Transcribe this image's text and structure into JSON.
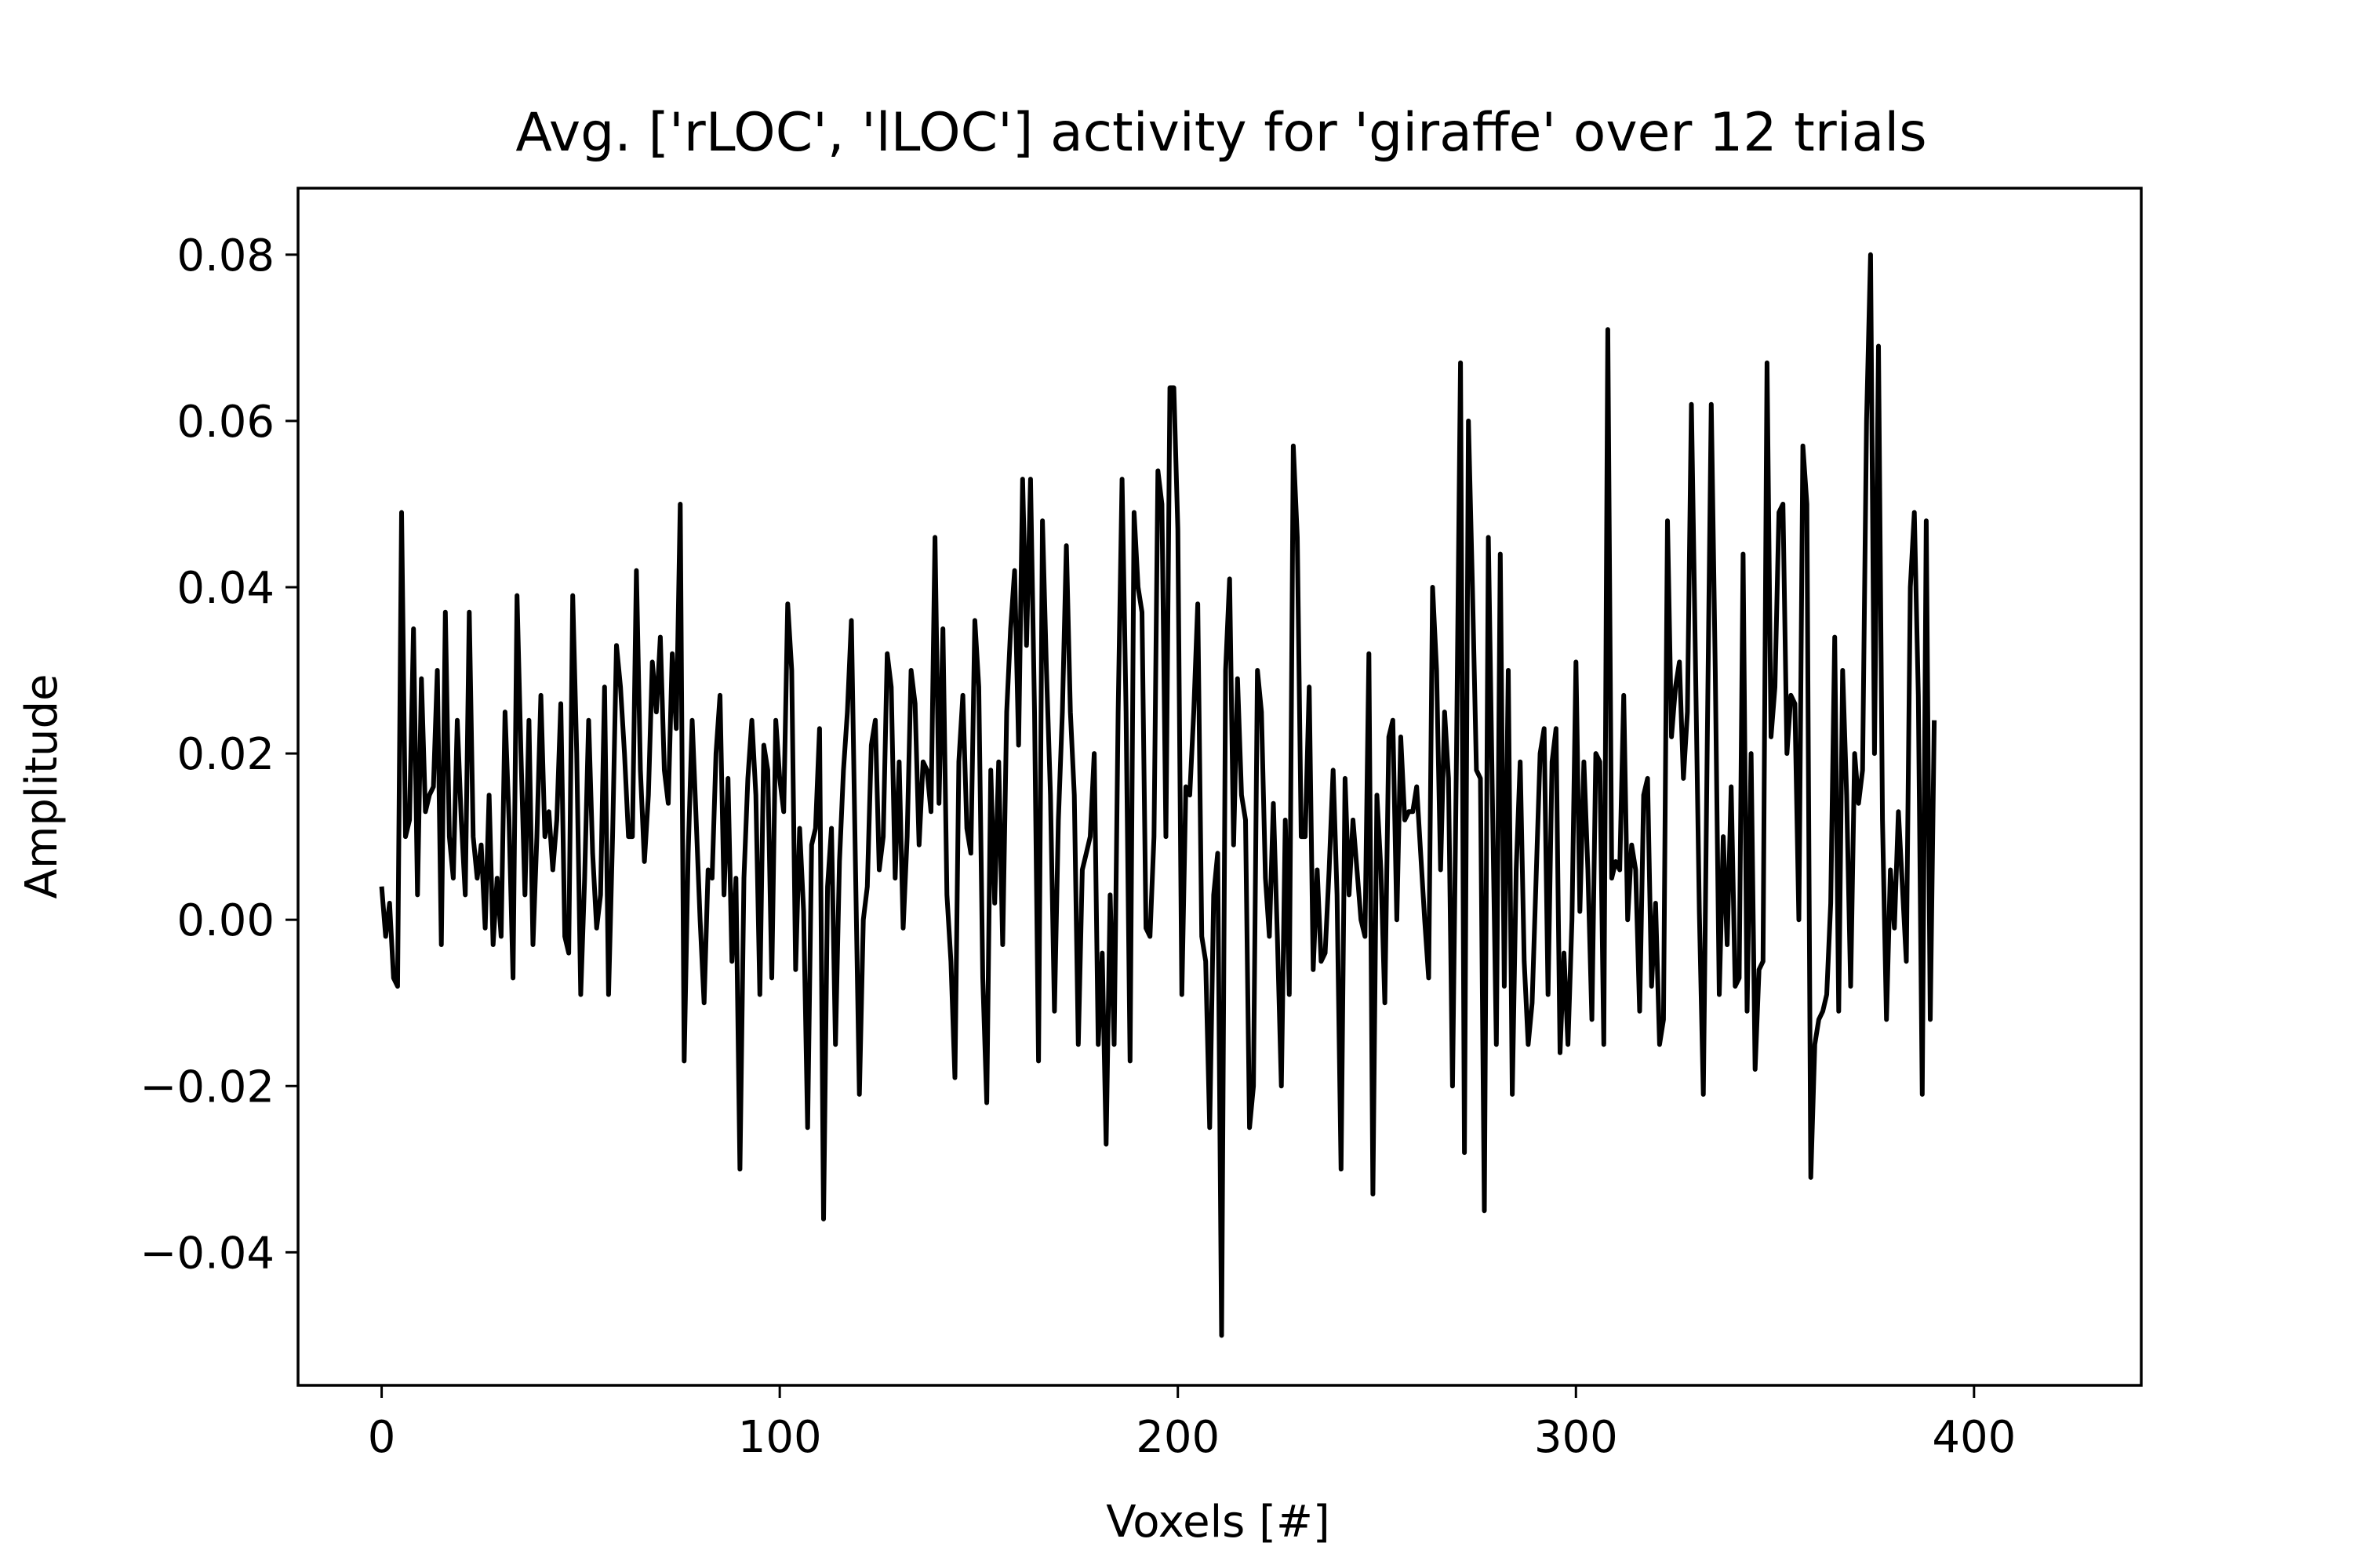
{
  "chart_data": {
    "type": "line",
    "title": "Avg. ['rLOC', 'lLOC'] activity for 'giraffe' over 12 trials",
    "xlabel": "Voxels [#]",
    "ylabel": "Amplitude",
    "xlim": [
      -21,
      442
    ],
    "ylim": [
      -0.056,
      0.088
    ],
    "x_ticks": [
      0,
      100,
      200,
      300,
      400
    ],
    "x_tick_labels": [
      "0",
      "100",
      "200",
      "300",
      "400"
    ],
    "y_ticks": [
      0.08,
      0.06,
      0.04,
      0.02,
      0.0,
      -0.02,
      -0.04
    ],
    "y_tick_labels": [
      "0.08",
      "0.06",
      "0.04",
      "0.02",
      "0.00",
      "−0.02",
      "−0.04"
    ],
    "grid": false,
    "line_color": "#000000",
    "series": [
      {
        "x_start": 0,
        "x_step": 1,
        "values": [
          0.004,
          -0.002,
          0.002,
          -0.007,
          -0.008,
          0.049,
          0.01,
          0.012,
          0.035,
          0.003,
          0.029,
          0.013,
          0.015,
          0.016,
          0.03,
          -0.003,
          0.037,
          0.01,
          0.005,
          0.024,
          0.012,
          0.003,
          0.037,
          0.01,
          0.005,
          0.009,
          -0.001,
          0.015,
          -0.003,
          0.005,
          -0.002,
          0.025,
          0.012,
          -0.007,
          0.039,
          0.02,
          0.003,
          0.024,
          -0.003,
          0.01,
          0.027,
          0.01,
          0.013,
          0.006,
          0.012,
          0.026,
          -0.002,
          -0.004,
          0.039,
          0.02,
          -0.009,
          0.005,
          0.024,
          0.008,
          -0.001,
          0.003,
          0.028,
          -0.009,
          0.01,
          0.033,
          0.028,
          0.02,
          0.01,
          0.01,
          0.042,
          0.018,
          0.007,
          0.015,
          0.031,
          0.025,
          0.034,
          0.018,
          0.014,
          0.032,
          0.023,
          0.05,
          -0.017,
          0.008,
          0.024,
          0.012,
          0.0,
          -0.01,
          0.006,
          0.005,
          0.02,
          0.027,
          0.003,
          0.017,
          -0.005,
          0.005,
          -0.03,
          0.005,
          0.017,
          0.024,
          0.015,
          -0.009,
          0.021,
          0.018,
          -0.007,
          0.024,
          0.017,
          0.013,
          0.038,
          0.03,
          -0.006,
          0.011,
          0.001,
          -0.025,
          0.009,
          0.011,
          0.023,
          -0.036,
          0.004,
          0.011,
          -0.015,
          0.007,
          0.018,
          0.025,
          0.036,
          0.007,
          -0.021,
          0.0,
          0.004,
          0.021,
          0.024,
          0.006,
          0.01,
          0.032,
          0.028,
          0.005,
          0.019,
          -0.001,
          0.01,
          0.03,
          0.026,
          0.009,
          0.019,
          0.018,
          0.013,
          0.046,
          0.014,
          0.035,
          0.003,
          -0.005,
          -0.019,
          0.019,
          0.027,
          0.011,
          0.008,
          0.036,
          0.028,
          -0.007,
          -0.022,
          0.018,
          0.002,
          0.019,
          -0.003,
          0.025,
          0.035,
          0.042,
          0.021,
          0.053,
          0.033,
          0.053,
          0.025,
          -0.017,
          0.048,
          0.03,
          0.015,
          -0.011,
          0.012,
          0.025,
          0.045,
          0.025,
          0.015,
          -0.015,
          0.006,
          0.008,
          0.01,
          0.02,
          -0.015,
          -0.004,
          -0.027,
          0.003,
          -0.015,
          0.025,
          0.053,
          0.025,
          -0.017,
          0.049,
          0.04,
          0.037,
          -0.001,
          -0.002,
          0.01,
          0.054,
          0.05,
          0.01,
          0.064,
          0.064,
          0.047,
          -0.009,
          0.016,
          0.015,
          0.025,
          0.038,
          -0.002,
          -0.005,
          -0.025,
          0.003,
          0.008,
          -0.05,
          0.03,
          0.041,
          0.009,
          0.029,
          0.015,
          0.012,
          -0.025,
          -0.02,
          0.03,
          0.025,
          0.005,
          -0.002,
          0.014,
          -0.002,
          -0.02,
          0.012,
          -0.009,
          0.057,
          0.046,
          0.01,
          0.01,
          0.028,
          -0.006,
          0.006,
          -0.005,
          -0.004,
          0.006,
          0.018,
          0.003,
          -0.03,
          0.017,
          0.003,
          0.012,
          0.006,
          0.0,
          -0.002,
          0.032,
          -0.033,
          0.015,
          0.006,
          -0.01,
          0.022,
          0.024,
          0.0,
          0.022,
          0.012,
          0.013,
          0.013,
          0.016,
          0.008,
          0.0,
          -0.007,
          0.04,
          0.03,
          0.006,
          0.025,
          0.017,
          -0.02,
          0.02,
          0.067,
          -0.028,
          0.06,
          0.04,
          0.018,
          0.017,
          -0.035,
          0.046,
          0.015,
          -0.015,
          0.044,
          -0.008,
          0.03,
          -0.021,
          0.006,
          0.019,
          -0.005,
          -0.015,
          -0.01,
          0.005,
          0.02,
          0.023,
          -0.009,
          0.019,
          0.023,
          -0.016,
          -0.004,
          -0.015,
          0.0,
          0.031,
          0.001,
          0.019,
          0.006,
          -0.012,
          0.02,
          0.019,
          -0.015,
          0.071,
          0.005,
          0.007,
          0.006,
          0.027,
          0.0,
          0.009,
          0.006,
          -0.011,
          0.015,
          0.017,
          -0.008,
          0.002,
          -0.015,
          -0.012,
          0.048,
          0.022,
          0.028,
          0.031,
          0.017,
          0.025,
          0.062,
          0.032,
          0.001,
          -0.021,
          0.022,
          0.062,
          0.03,
          -0.009,
          0.01,
          -0.003,
          0.016,
          -0.008,
          -0.007,
          0.044,
          -0.011,
          0.02,
          -0.018,
          -0.006,
          -0.005,
          0.067,
          0.022,
          0.028,
          0.049,
          0.05,
          0.02,
          0.027,
          0.026,
          0.0,
          0.057,
          0.05,
          -0.031,
          -0.015,
          -0.012,
          -0.011,
          -0.009,
          0.002,
          0.034,
          -0.011,
          0.03,
          0.015,
          -0.008,
          0.02,
          0.014,
          0.018,
          0.06,
          0.08,
          0.02,
          0.069,
          0.012,
          -0.012,
          0.006,
          -0.001,
          0.013,
          0.004,
          -0.005,
          0.04,
          0.049,
          0.027,
          -0.021,
          0.048,
          -0.012,
          0.024
        ]
      }
    ]
  }
}
